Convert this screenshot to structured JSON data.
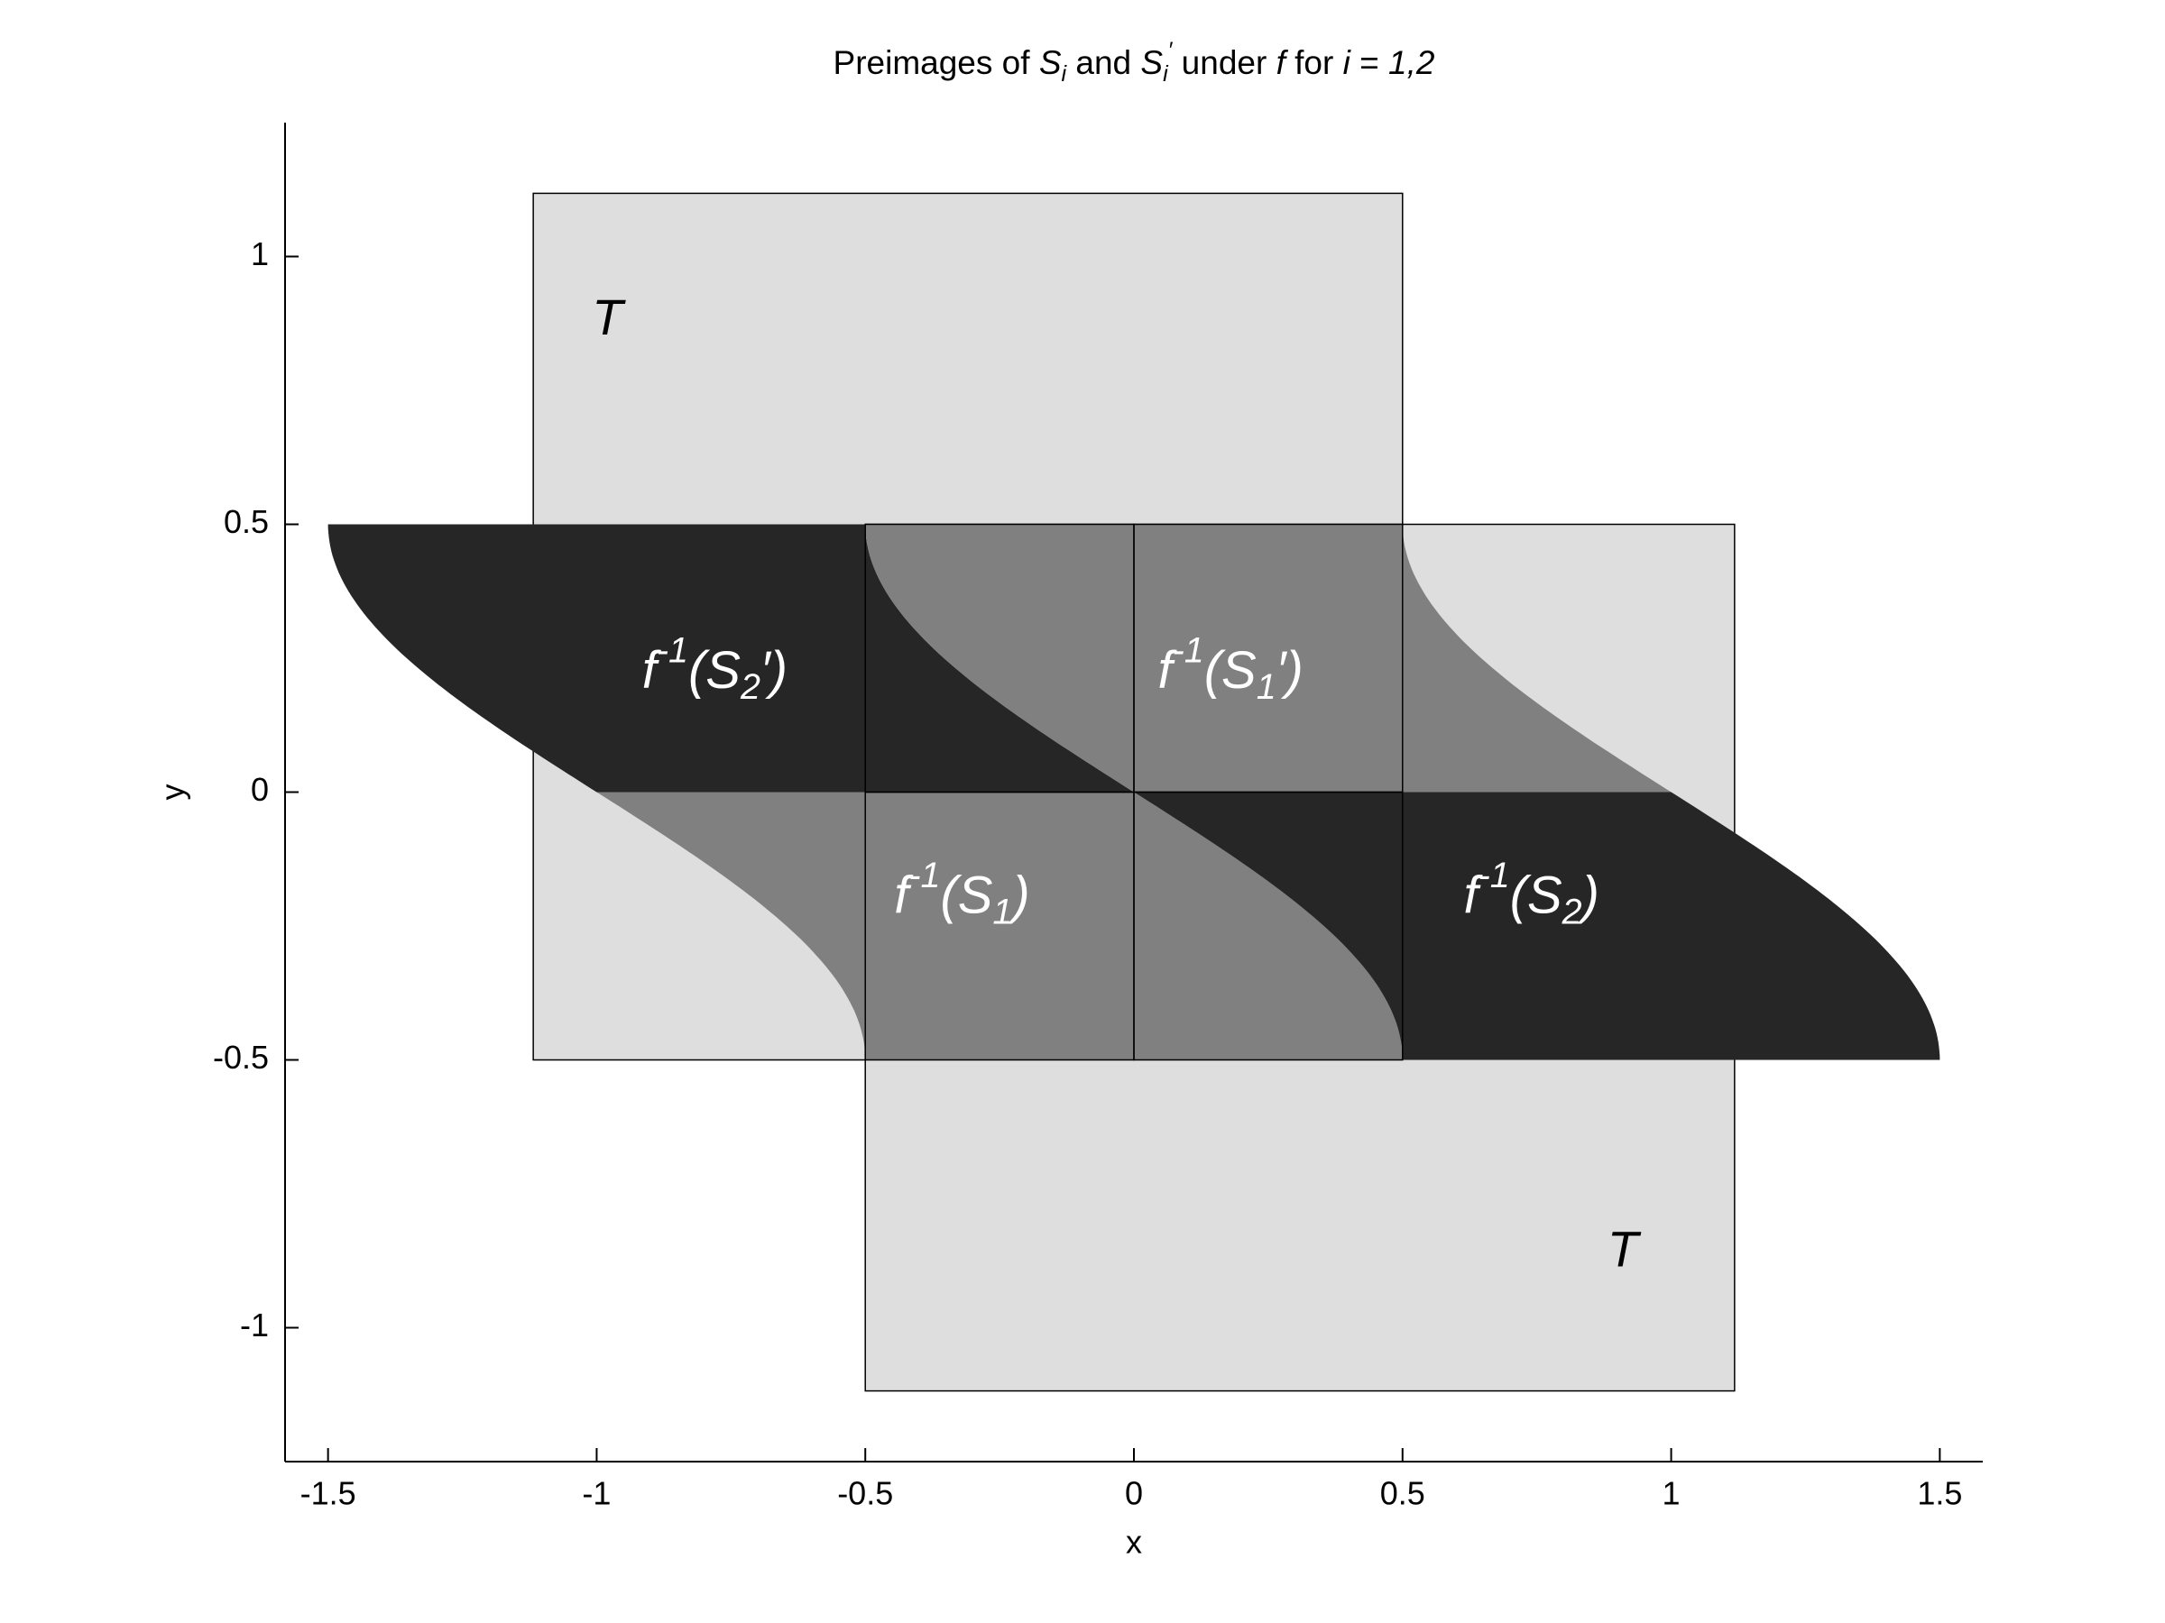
{
  "chart_data": {
    "type": "region",
    "title": [
      {
        "text": "Preimages of "
      },
      {
        "text": "S",
        "style": "italic"
      },
      {
        "text": "i",
        "style": "italic-sub"
      },
      {
        "text": " and "
      },
      {
        "text": "S",
        "style": "italic"
      },
      {
        "text": "i",
        "style": "italic-sub"
      },
      {
        "text": "′",
        "style": "italic-sup"
      },
      {
        "text": " under "
      },
      {
        "text": "f",
        "style": "italic"
      },
      {
        "text": " for "
      },
      {
        "text": "i",
        "style": "italic"
      },
      {
        "text": " = "
      },
      {
        "text": "1,2",
        "style": "italic"
      }
    ],
    "xlabel": "x",
    "ylabel": "y",
    "xlim": [
      -1.58,
      1.58
    ],
    "ylim": [
      -1.25,
      1.25
    ],
    "xticks": [
      -1.5,
      -1,
      -0.5,
      0,
      0.5,
      1,
      1.5
    ],
    "yticks": [
      -1,
      -0.5,
      0,
      0.5,
      1
    ],
    "rectangles": [
      {
        "x": [
          -1.118,
          0.5
        ],
        "y": [
          -0.5,
          1.118
        ],
        "fill": "#dedede"
      },
      {
        "x": [
          -0.5,
          1.118
        ],
        "y": [
          -1.118,
          0.5
        ],
        "fill": "#dedede"
      }
    ],
    "regions": [
      {
        "curves": [
          -1,
          0
        ],
        "y": [
          0,
          0.5
        ],
        "fill": "#262626"
      },
      {
        "curves": [
          0,
          1
        ],
        "y": [
          0,
          0.5
        ],
        "fill": "#808080"
      },
      {
        "curves": [
          -1,
          0
        ],
        "y": [
          -0.5,
          0
        ],
        "fill": "#808080"
      },
      {
        "curves": [
          0,
          1
        ],
        "y": [
          -0.5,
          0
        ],
        "fill": "#262626"
      }
    ],
    "cells": [
      {
        "x": [
          -0.5,
          0
        ],
        "y": [
          0,
          0.5
        ]
      },
      {
        "x": [
          0,
          0.5
        ],
        "y": [
          0,
          0.5
        ]
      },
      {
        "x": [
          -0.5,
          0
        ],
        "y": [
          -0.5,
          0
        ]
      },
      {
        "x": [
          0,
          0.5
        ],
        "y": [
          -0.5,
          0
        ]
      }
    ],
    "annotations": [
      {
        "color": "#000000",
        "parts": [
          {
            "text": "T",
            "style": "italic"
          }
        ]
      },
      {
        "color": "#000000",
        "parts": [
          {
            "text": "T",
            "style": "italic"
          }
        ]
      },
      {
        "color": "#ffffff",
        "parts": [
          {
            "text": "f",
            "style": "italic"
          },
          {
            "text": "-1",
            "style": "italic-sup"
          },
          {
            "text": "(S",
            "style": "italic"
          },
          {
            "text": "2",
            "style": "italic-sub"
          },
          {
            "text": "′)",
            "style": "italic"
          }
        ]
      },
      {
        "color": "#ffffff",
        "parts": [
          {
            "text": "f",
            "style": "italic"
          },
          {
            "text": "-1",
            "style": "italic-sup"
          },
          {
            "text": "(S",
            "style": "italic"
          },
          {
            "text": "1",
            "style": "italic-sub"
          },
          {
            "text": "′)",
            "style": "italic"
          }
        ]
      },
      {
        "color": "#ffffff",
        "parts": [
          {
            "text": "f",
            "style": "italic"
          },
          {
            "text": "-1",
            "style": "italic-sup"
          },
          {
            "text": "(S",
            "style": "italic"
          },
          {
            "text": "1",
            "style": "italic-sub"
          },
          {
            "text": ")",
            "style": "italic"
          }
        ]
      },
      {
        "color": "#ffffff",
        "parts": [
          {
            "text": "f",
            "style": "italic"
          },
          {
            "text": "-1",
            "style": "italic-sup"
          },
          {
            "text": "(S",
            "style": "italic"
          },
          {
            "text": "2",
            "style": "italic-sub"
          },
          {
            "text": ")",
            "style": "italic"
          }
        ]
      }
    ]
  }
}
